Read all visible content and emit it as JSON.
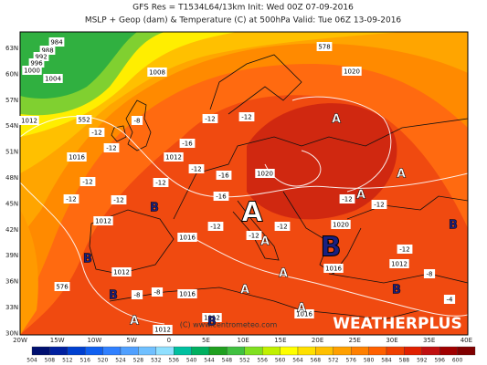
{
  "header": {
    "line1": "GFS Res = T1534L64/13km   Init: Wed 00Z 07-09-2016",
    "line2": "MSLP + Geop (dam) & Temperature (C) at 500hPa   Valid: Tue 06Z 13-09-2016"
  },
  "map": {
    "lat_labels": [
      "63N",
      "60N",
      "57N",
      "54N",
      "51N",
      "48N",
      "45N",
      "42N",
      "39N",
      "36N",
      "33N",
      "30N"
    ],
    "lon_labels": [
      "20W",
      "15W",
      "10W",
      "5W",
      "0",
      "5E",
      "10E",
      "15E",
      "20E",
      "25E",
      "30E",
      "35E",
      "40E"
    ],
    "isobar_labels": [
      "984",
      "988",
      "992",
      "996",
      "1000",
      "1004",
      "1008",
      "578",
      "1020",
      "1012",
      "552",
      "1016",
      "1012",
      "1020",
      "1012",
      "1016",
      "1020",
      "1012",
      "1016",
      "1012",
      "1016",
      "1016",
      "1012",
      "576",
      "1012"
    ],
    "temperature_labels": [
      "-12",
      "-12",
      "-16",
      "-12",
      "-16",
      "-12",
      "-12",
      "-12",
      "-12",
      "-16",
      "-12",
      "-12",
      "-12",
      "-12",
      "-12",
      "-12",
      "-8",
      "-8",
      "-8",
      "-4",
      "-12",
      "-12",
      "-8"
    ],
    "centers": [
      {
        "label": "A",
        "color": "#ffffff"
      },
      {
        "label": "B",
        "color": "#1a2080"
      },
      {
        "label": "A",
        "color": "#ffffff"
      },
      {
        "label": "A",
        "color": "#ffffff"
      },
      {
        "label": "A",
        "color": "#ffffff"
      },
      {
        "label": "A",
        "color": "#ffffff"
      },
      {
        "label": "A",
        "color": "#ffffff"
      },
      {
        "label": "A",
        "color": "#ffffff"
      },
      {
        "label": "A",
        "color": "#ffffff"
      },
      {
        "label": "A",
        "color": "#ffffff"
      },
      {
        "label": "B",
        "color": "#1a2080"
      },
      {
        "label": "B",
        "color": "#1a2080"
      },
      {
        "label": "B",
        "color": "#1a2080"
      },
      {
        "label": "B",
        "color": "#1a2080"
      },
      {
        "label": "B",
        "color": "#1a2080"
      },
      {
        "label": "B",
        "color": "#1a2080"
      }
    ]
  },
  "legend": {
    "labels": [
      504,
      508,
      512,
      516,
      520,
      524,
      528,
      532,
      536,
      540,
      544,
      548,
      552,
      556,
      560,
      564,
      568,
      572,
      576,
      580,
      584,
      588,
      592,
      596,
      600
    ],
    "colors": [
      "#001070",
      "#0020a0",
      "#0040d0",
      "#1060f0",
      "#3080ff",
      "#50a0ff",
      "#70c0ff",
      "#90e0ff",
      "#00c0a0",
      "#00b060",
      "#20a020",
      "#40c040",
      "#80e020",
      "#c0f000",
      "#ffff00",
      "#ffe000",
      "#ffc000",
      "#ffa000",
      "#ff8000",
      "#ff6000",
      "#f04000",
      "#e02000",
      "#c01010",
      "#a00000",
      "#800000"
    ]
  },
  "watermark": "WEATHERPLUS",
  "credit": "(C) www.centrometeo.com"
}
